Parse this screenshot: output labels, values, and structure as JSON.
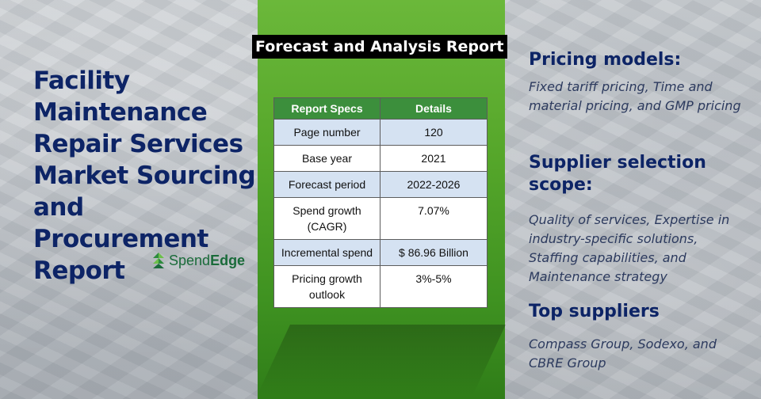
{
  "left": {
    "title": "Facility Maintenance Repair Services Market Sourcing and Procurement Report",
    "logo_text_a": "Spend",
    "logo_text_b": "Edge"
  },
  "center": {
    "report_label": "Forecast and Analysis Report",
    "table": {
      "headers": [
        "Report Specs",
        "Details"
      ],
      "rows": [
        [
          "Page number",
          "120"
        ],
        [
          "Base year",
          "2021"
        ],
        [
          "Forecast period",
          "2022-2026"
        ],
        [
          "Spend growth (CAGR)",
          "7.07%"
        ],
        [
          "Incremental spend",
          "$ 86.96 Billion"
        ],
        [
          "Pricing growth outlook",
          "3%-5%"
        ]
      ]
    }
  },
  "right": {
    "pricing_heading": "Pricing models:",
    "pricing_text": "Fixed tariff pricing, Time and material pricing, and GMP pricing",
    "supplier_heading": "Supplier selection scope:",
    "supplier_text": "Quality of services, Expertise in industry-specific solutions, Staffing capabilities, and Maintenance strategy",
    "top_heading": "Top suppliers",
    "top_text": "Compass Group, Sodexo, and CBRE Group"
  },
  "colors": {
    "title_blue": "#0d2466",
    "panel_green": "#55a62a",
    "table_header_green": "#3c8f3c",
    "row_blue": "#d5e2f2"
  },
  "icons": {
    "logo": "spendedge-logo-icon"
  }
}
